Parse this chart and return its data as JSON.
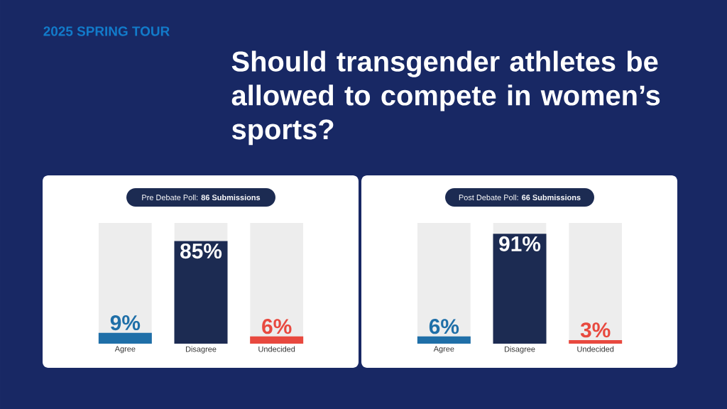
{
  "chart_data": [
    {
      "type": "bar",
      "title": "Should transgender athletes be allowed to compete in women’s sports?",
      "annotations": [
        "2025 SPRING TOUR"
      ],
      "subtitle": "Pre Debate Poll: **86 Submissions**",
      "categories": [
        "Agree",
        "Disagree",
        "Undecided"
      ],
      "values": [
        9,
        85,
        6
      ],
      "value_labels": [
        "9%",
        "85%",
        "6%"
      ],
      "colors": [
        "#1f6fa8",
        "#1c2b52",
        "#e8493f"
      ],
      "ylim": [
        0,
        100
      ]
    },
    {
      "type": "bar",
      "subtitle": "Post Debate Poll: **66 Submissions**",
      "categories": [
        "Agree",
        "Disagree",
        "Undecided"
      ],
      "values": [
        6,
        91,
        3
      ],
      "value_labels": [
        "6%",
        "91%",
        "3%"
      ],
      "colors": [
        "#1f6fa8",
        "#1c2b52",
        "#e8493f"
      ],
      "ylim": [
        0,
        100
      ]
    }
  ]
}
